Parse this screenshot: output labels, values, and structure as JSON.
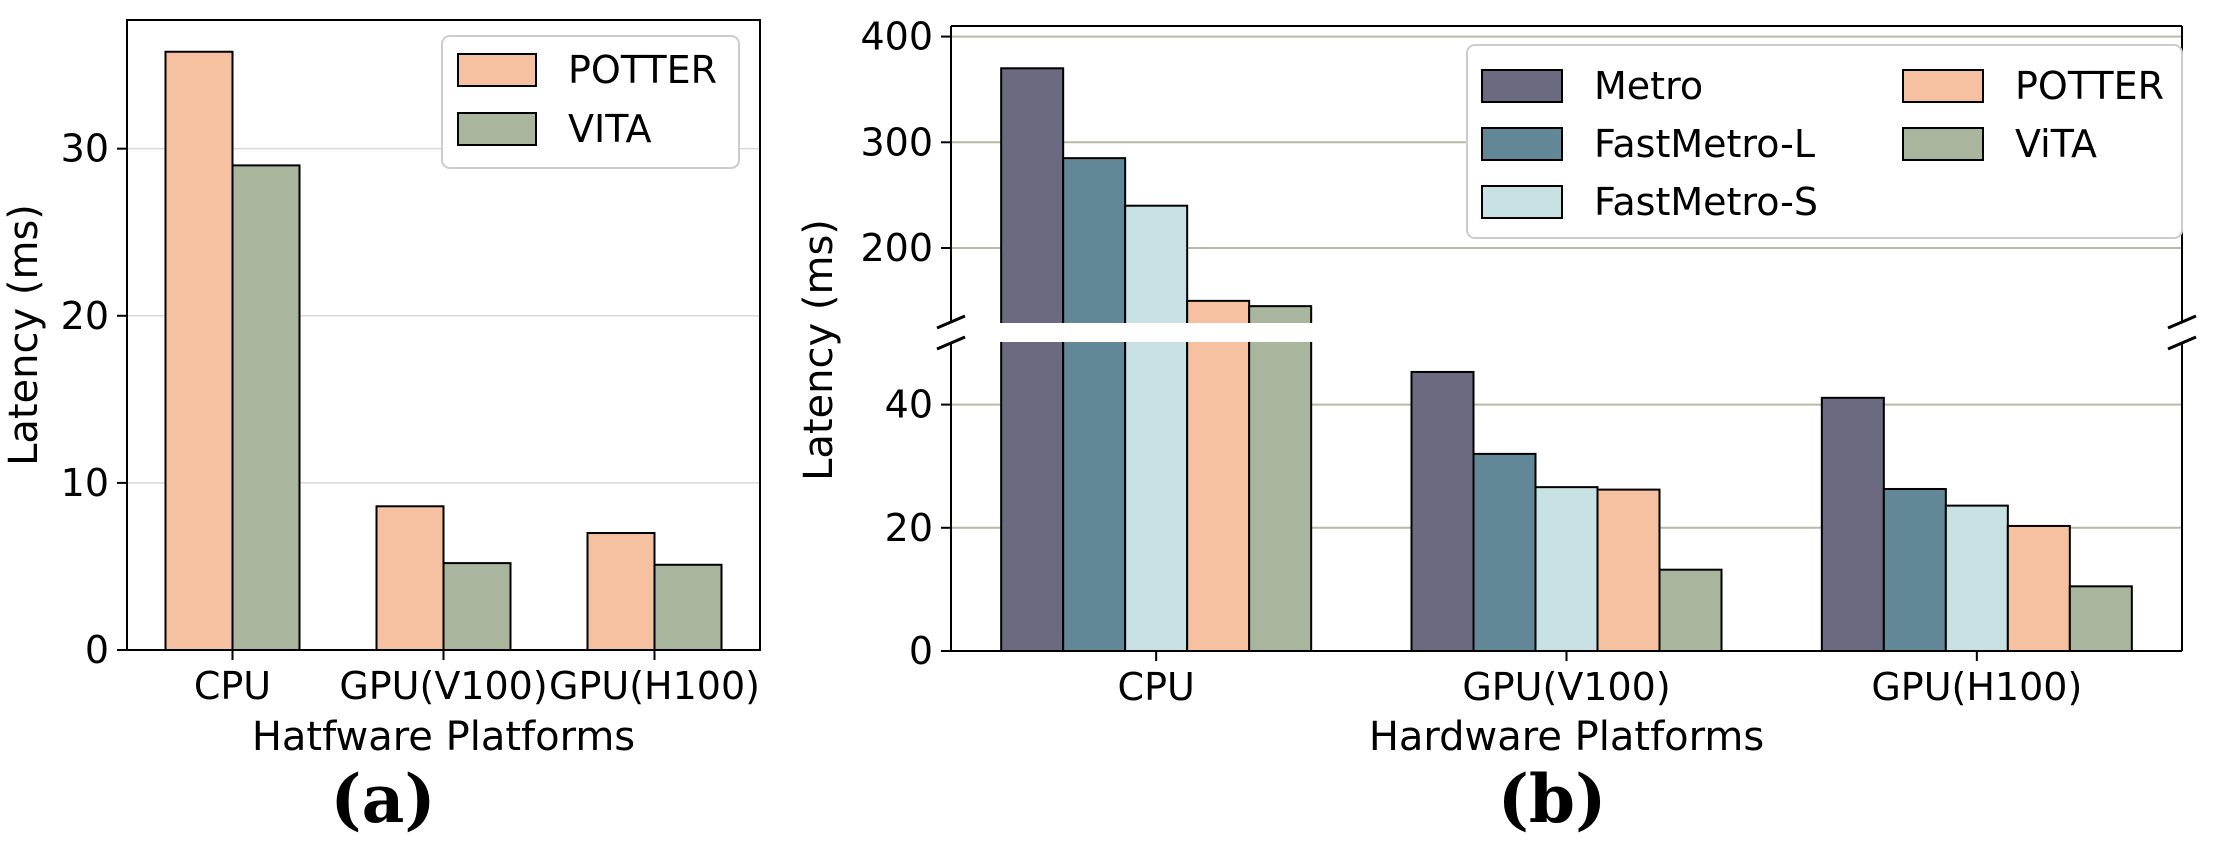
{
  "panels": {
    "a": {
      "label": "(a)"
    },
    "b": {
      "label": "(b)"
    }
  },
  "colors": {
    "Metro": "#6b6a80",
    "FastMetro-L": "#628897",
    "FastMetro-S": "#c8e1e2",
    "POTTER": "#f5c1a0",
    "VITA": "#a9b59d",
    "grid_a": "#d9d9d9",
    "grid_b": "#b7baa6"
  },
  "chart_data": [
    {
      "type": "bar",
      "title": "",
      "xlabel": "Hatfware Platforms",
      "ylabel": "Latency (ms)",
      "categories": [
        "CPU",
        "GPU(V100)",
        "GPU(H100)"
      ],
      "series": [
        {
          "name": "POTTER",
          "values": [
            35.8,
            8.6,
            7.0
          ]
        },
        {
          "name": "VITA",
          "values": [
            29.0,
            5.2,
            5.1
          ]
        }
      ],
      "ylim": [
        0,
        37.7
      ],
      "yticks": [
        0,
        10,
        20,
        30
      ],
      "grid": true,
      "legend_position": "top-right"
    },
    {
      "type": "bar",
      "title": "",
      "xlabel": "Hardware Platforms",
      "ylabel": "Latency (ms)",
      "categories": [
        "CPU",
        "GPU(V100)",
        "GPU(H100)"
      ],
      "series": [
        {
          "name": "Metro",
          "values": [
            370,
            45.3,
            41.1
          ]
        },
        {
          "name": "FastMetro-L",
          "values": [
            285,
            32.0,
            26.3
          ]
        },
        {
          "name": "FastMetro-S",
          "values": [
            240,
            26.6,
            23.6
          ]
        },
        {
          "name": "POTTER",
          "values": [
            150,
            26.2,
            20.3
          ]
        },
        {
          "name": "ViTA",
          "values": [
            145,
            13.2,
            10.5
          ]
        }
      ],
      "broken_axis": {
        "lower_range": [
          0,
          50
        ],
        "upper_range": [
          130,
          410
        ]
      },
      "yticks_lower": [
        0,
        20,
        40
      ],
      "yticks_upper": [
        200,
        300,
        400
      ],
      "grid": true,
      "legend_position": "top-right"
    }
  ]
}
